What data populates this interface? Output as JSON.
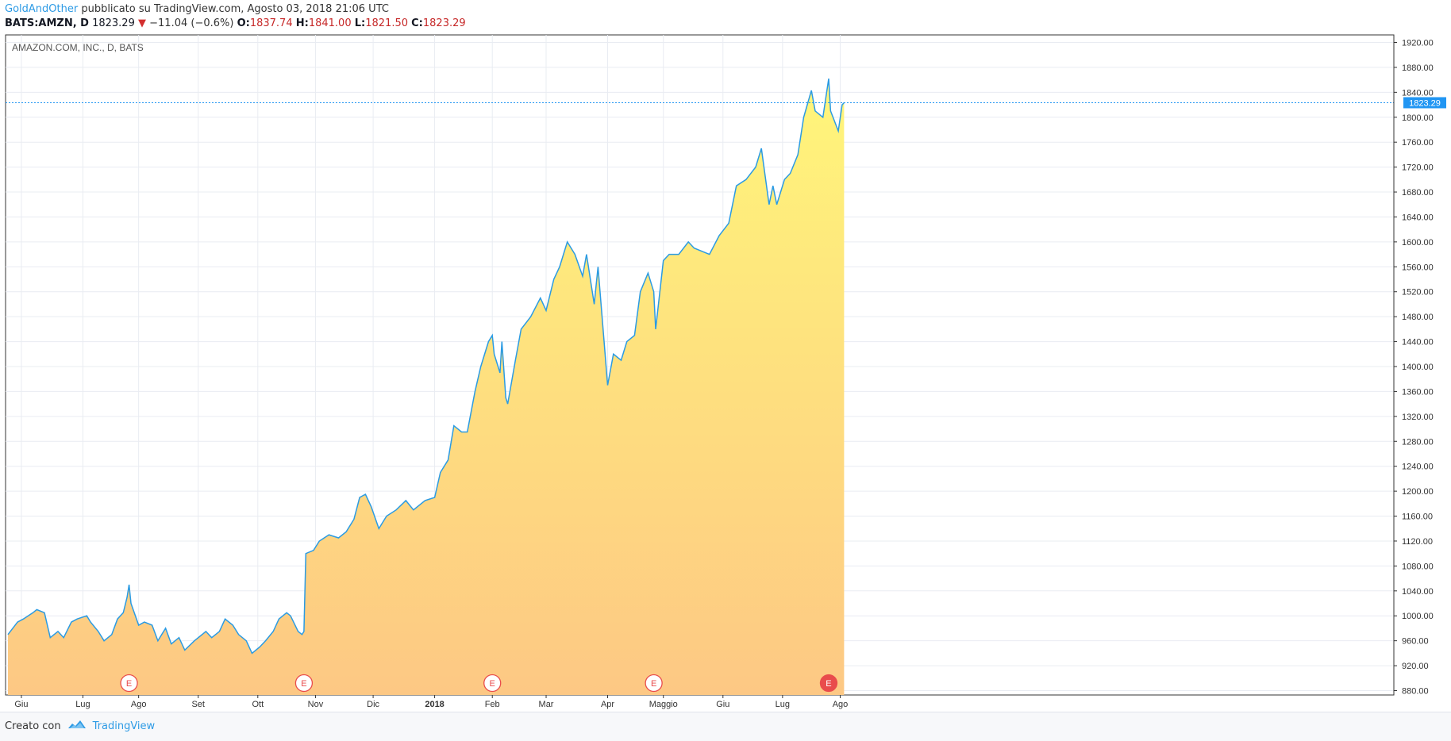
{
  "header": {
    "author": "GoldAndOther",
    "published": "pubblicato su TradingView.com, Agosto 03, 2018 21:06 UTC"
  },
  "ohlc": {
    "symbol": "BATS:AMZN, D",
    "last": "1823.29",
    "change_arrow": "▼",
    "change": "−11.04 (−0.6%)",
    "o_label": "O:",
    "o": "1837.74",
    "h_label": "H:",
    "h": "1841.00",
    "l_label": "L:",
    "l": "1821.50",
    "c_label": "C:",
    "c": "1823.29"
  },
  "chart_title": "AMAZON.COM, INC., D, BATS",
  "footer": {
    "made_with": "Creato con",
    "brand": "TradingView"
  },
  "colors": {
    "line": "#2b9be3",
    "fill_top": "#fff67a",
    "fill_bottom": "#fdc884",
    "price_label": "#2196f3",
    "earnings": "#e94c4c"
  },
  "chart_data": {
    "type": "area",
    "title": "AMAZON.COM, INC., D, BATS",
    "ylim": [
      860,
      1930
    ],
    "y_ticks": [
      "880.00",
      "920.00",
      "960.00",
      "1000.00",
      "1040.00",
      "1080.00",
      "1120.00",
      "1160.00",
      "1200.00",
      "1240.00",
      "1280.00",
      "1320.00",
      "1360.00",
      "1400.00",
      "1440.00",
      "1480.00",
      "1520.00",
      "1560.00",
      "1600.00",
      "1640.00",
      "1680.00",
      "1720.00",
      "1760.00",
      "1800.00",
      "1840.00",
      "1880.00",
      "1920.00"
    ],
    "x_ticks": [
      "Giu",
      "Lug",
      "Ago",
      "Set",
      "Ott",
      "Nov",
      "Dic",
      "2018",
      "Feb",
      "Mar",
      "Apr",
      "Maggio",
      "Giu",
      "Lug",
      "Ago"
    ],
    "last_price": "1823.29",
    "grid": true,
    "x_start": "2017-05-25",
    "x_end": "2018-08-03",
    "earnings": [
      {
        "date": "2017-07-27",
        "label": "E"
      },
      {
        "date": "2017-10-26",
        "label": "E"
      },
      {
        "date": "2018-02-01",
        "label": "E"
      },
      {
        "date": "2018-04-26",
        "label": "E"
      },
      {
        "date": "2018-07-26",
        "label": "E"
      }
    ],
    "series": [
      {
        "points": [
          [
            "2017-05-25",
            970
          ],
          [
            "2017-05-30",
            990
          ],
          [
            "2017-06-02",
            995
          ],
          [
            "2017-06-07",
            1005
          ],
          [
            "2017-06-09",
            1010
          ],
          [
            "2017-06-13",
            1005
          ],
          [
            "2017-06-16",
            965
          ],
          [
            "2017-06-20",
            975
          ],
          [
            "2017-06-23",
            965
          ],
          [
            "2017-06-27",
            990
          ],
          [
            "2017-06-30",
            995
          ],
          [
            "2017-07-05",
            1000
          ],
          [
            "2017-07-07",
            990
          ],
          [
            "2017-07-11",
            975
          ],
          [
            "2017-07-14",
            960
          ],
          [
            "2017-07-18",
            970
          ],
          [
            "2017-07-21",
            995
          ],
          [
            "2017-07-24",
            1005
          ],
          [
            "2017-07-26",
            1030
          ],
          [
            "2017-07-27",
            1050
          ],
          [
            "2017-07-28",
            1020
          ],
          [
            "2017-08-01",
            985
          ],
          [
            "2017-08-04",
            990
          ],
          [
            "2017-08-08",
            985
          ],
          [
            "2017-08-11",
            960
          ],
          [
            "2017-08-15",
            980
          ],
          [
            "2017-08-18",
            955
          ],
          [
            "2017-08-22",
            965
          ],
          [
            "2017-08-25",
            945
          ],
          [
            "2017-08-30",
            960
          ],
          [
            "2017-09-05",
            975
          ],
          [
            "2017-09-08",
            965
          ],
          [
            "2017-09-12",
            975
          ],
          [
            "2017-09-15",
            995
          ],
          [
            "2017-09-19",
            985
          ],
          [
            "2017-09-22",
            970
          ],
          [
            "2017-09-26",
            960
          ],
          [
            "2017-09-29",
            940
          ],
          [
            "2017-10-03",
            950
          ],
          [
            "2017-10-06",
            960
          ],
          [
            "2017-10-10",
            975
          ],
          [
            "2017-10-13",
            995
          ],
          [
            "2017-10-17",
            1005
          ],
          [
            "2017-10-19",
            1000
          ],
          [
            "2017-10-23",
            975
          ],
          [
            "2017-10-25",
            970
          ],
          [
            "2017-10-26",
            975
          ],
          [
            "2017-10-27",
            1100
          ],
          [
            "2017-10-31",
            1105
          ],
          [
            "2017-11-03",
            1120
          ],
          [
            "2017-11-08",
            1130
          ],
          [
            "2017-11-13",
            1125
          ],
          [
            "2017-11-17",
            1135
          ],
          [
            "2017-11-21",
            1155
          ],
          [
            "2017-11-24",
            1190
          ],
          [
            "2017-11-27",
            1195
          ],
          [
            "2017-11-30",
            1175
          ],
          [
            "2017-12-04",
            1140
          ],
          [
            "2017-12-08",
            1160
          ],
          [
            "2017-12-13",
            1170
          ],
          [
            "2017-12-18",
            1185
          ],
          [
            "2017-12-22",
            1170
          ],
          [
            "2017-12-28",
            1185
          ],
          [
            "2018-01-02",
            1190
          ],
          [
            "2018-01-05",
            1230
          ],
          [
            "2018-01-09",
            1250
          ],
          [
            "2018-01-12",
            1305
          ],
          [
            "2018-01-16",
            1295
          ],
          [
            "2018-01-19",
            1295
          ],
          [
            "2018-01-23",
            1360
          ],
          [
            "2018-01-26",
            1400
          ],
          [
            "2018-01-30",
            1440
          ],
          [
            "2018-02-01",
            1450
          ],
          [
            "2018-02-02",
            1420
          ],
          [
            "2018-02-05",
            1390
          ],
          [
            "2018-02-06",
            1440
          ],
          [
            "2018-02-08",
            1350
          ],
          [
            "2018-02-09",
            1340
          ],
          [
            "2018-02-13",
            1410
          ],
          [
            "2018-02-16",
            1460
          ],
          [
            "2018-02-21",
            1480
          ],
          [
            "2018-02-26",
            1510
          ],
          [
            "2018-03-01",
            1490
          ],
          [
            "2018-03-05",
            1540
          ],
          [
            "2018-03-08",
            1560
          ],
          [
            "2018-03-12",
            1600
          ],
          [
            "2018-03-16",
            1580
          ],
          [
            "2018-03-20",
            1545
          ],
          [
            "2018-03-22",
            1580
          ],
          [
            "2018-03-26",
            1500
          ],
          [
            "2018-03-28",
            1560
          ],
          [
            "2018-04-02",
            1370
          ],
          [
            "2018-04-05",
            1420
          ],
          [
            "2018-04-09",
            1410
          ],
          [
            "2018-04-12",
            1440
          ],
          [
            "2018-04-16",
            1450
          ],
          [
            "2018-04-19",
            1520
          ],
          [
            "2018-04-23",
            1550
          ],
          [
            "2018-04-26",
            1520
          ],
          [
            "2018-04-27",
            1460
          ],
          [
            "2018-05-01",
            1570
          ],
          [
            "2018-05-04",
            1580
          ],
          [
            "2018-05-09",
            1580
          ],
          [
            "2018-05-14",
            1600
          ],
          [
            "2018-05-17",
            1590
          ],
          [
            "2018-05-21",
            1585
          ],
          [
            "2018-05-25",
            1580
          ],
          [
            "2018-05-30",
            1610
          ],
          [
            "2018-06-04",
            1630
          ],
          [
            "2018-06-08",
            1690
          ],
          [
            "2018-06-13",
            1700
          ],
          [
            "2018-06-18",
            1720
          ],
          [
            "2018-06-21",
            1750
          ],
          [
            "2018-06-25",
            1660
          ],
          [
            "2018-06-27",
            1690
          ],
          [
            "2018-06-29",
            1660
          ],
          [
            "2018-07-03",
            1700
          ],
          [
            "2018-07-06",
            1710
          ],
          [
            "2018-07-10",
            1740
          ],
          [
            "2018-07-13",
            1800
          ],
          [
            "2018-07-17",
            1843
          ],
          [
            "2018-07-19",
            1810
          ],
          [
            "2018-07-23",
            1800
          ],
          [
            "2018-07-26",
            1862
          ],
          [
            "2018-07-27",
            1810
          ],
          [
            "2018-07-31",
            1778
          ],
          [
            "2018-08-02",
            1820
          ],
          [
            "2018-08-03",
            1823.29
          ]
        ]
      }
    ]
  }
}
